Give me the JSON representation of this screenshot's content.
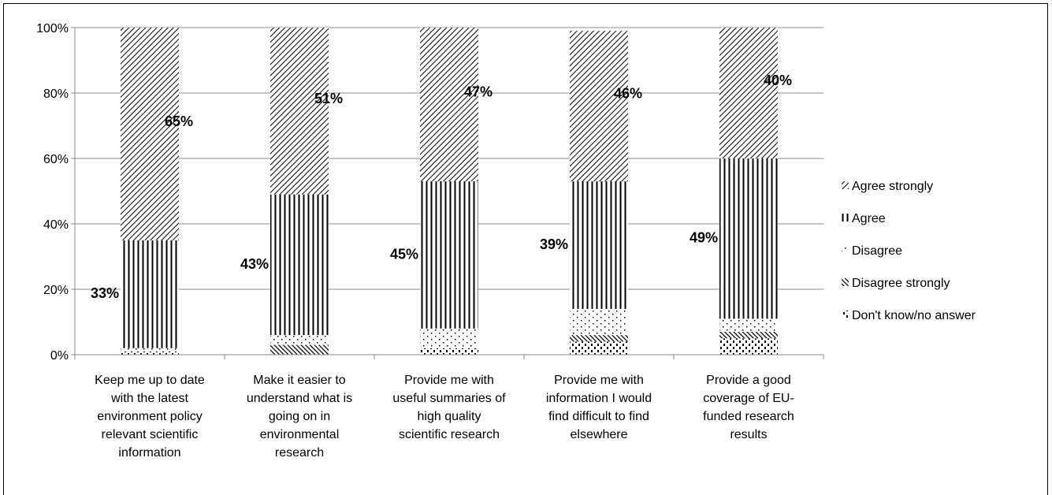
{
  "chart_data": {
    "type": "bar",
    "stacked": true,
    "percent_stacked": true,
    "categories": [
      "Keep me up to date with the latest environment policy relevant scientific information",
      "Make it easier to understand what is going on in environmental research",
      "Provide me with useful summaries of high quality scientific research",
      "Provide me with information I would find difficult to find elsewhere",
      "Provide a good coverage of EU-funded research results"
    ],
    "category_lines": [
      [
        "Keep me up to date",
        "with the latest",
        "environment policy",
        "relevant scientific",
        "information"
      ],
      [
        "Make it easier to",
        "understand what is",
        "going on in",
        "environmental",
        "research"
      ],
      [
        "Provide me with",
        "useful summaries of",
        "high quality",
        "scientific research"
      ],
      [
        "Provide me with",
        "information I would",
        "find difficult to find",
        "elsewhere"
      ],
      [
        "Provide a good",
        "coverage of EU-",
        "funded research",
        "results"
      ]
    ],
    "series": [
      {
        "name": "Don't know/no answer",
        "values": [
          1,
          0,
          2,
          4,
          5
        ],
        "pattern": "dashes"
      },
      {
        "name": "Disagree strongly",
        "values": [
          0,
          3,
          0,
          2,
          2
        ],
        "pattern": "diagonal-dense"
      },
      {
        "name": "Disagree",
        "values": [
          1,
          3,
          6,
          8,
          4
        ],
        "pattern": "dots"
      },
      {
        "name": "Agree",
        "values": [
          33,
          43,
          45,
          39,
          49
        ],
        "pattern": "vertical-lines"
      },
      {
        "name": "Agree strongly",
        "values": [
          65,
          51,
          47,
          46,
          40
        ],
        "pattern": "diagonal-lines"
      }
    ],
    "data_labels": [
      {
        "series": "Agree",
        "labels": [
          "33%",
          "43%",
          "45%",
          "39%",
          "49%"
        ]
      },
      {
        "series": "Agree strongly",
        "labels": [
          "65%",
          "51%",
          "47%",
          "46%",
          "40%"
        ]
      }
    ],
    "y_ticks": [
      "0%",
      "20%",
      "40%",
      "60%",
      "80%",
      "100%"
    ],
    "ylim": [
      0,
      100
    ],
    "legend_order": [
      "Agree strongly",
      "Agree",
      "Disagree",
      "Disagree strongly",
      "Don't know/no answer"
    ],
    "legend_position": "right",
    "grid": true,
    "title": "",
    "xlabel": "",
    "ylabel": ""
  }
}
